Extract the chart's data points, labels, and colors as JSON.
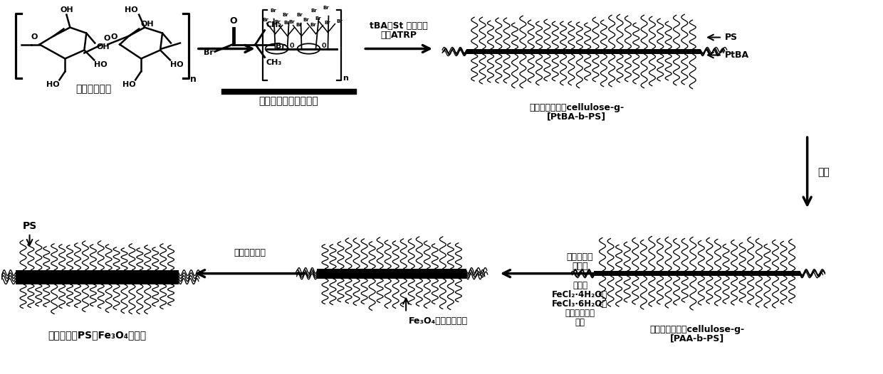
{
  "bg_color": "#ffffff",
  "fig_width": 12.4,
  "fig_height": 5.26,
  "labels": {
    "cellulose": "纤维素大分子",
    "initiator": "纤维素大分子基引发剂",
    "atrp_line1": "tBA和St 二单体的",
    "atrp_line2": "联系ATRP",
    "brush_polymer_line1": "刷状嵌段聚合物cellulose-g-",
    "brush_polymer_line2": "[PtBA-b-PS]",
    "hydrolysis": "水解",
    "template_line1": "刷状模板共聚物cellulose-g-",
    "template_line2": "[PAA-b-PS]",
    "add_precursor_line1": "加入前驱体",
    "add_precursor_line2": "化合物",
    "precursor_line1": "化合物",
    "precursor_line2": "FeCl₂·4H₂O和",
    "precursor_line3": "FeCl₃·6H₂O为",
    "precursor_line4": "前驱体化合物",
    "precursor_line5": "体系",
    "crystal_growth": "晶体原位生长",
    "fe3o4_precursor": "Fe₃O₄前驱体化合物",
    "ps_fe3o4_nanorod": "表面覆盖有PS的Fe₃O₄纳米棒",
    "PS_top": "PS",
    "PtBA_top": "PtBA",
    "PS_left": "PS"
  }
}
